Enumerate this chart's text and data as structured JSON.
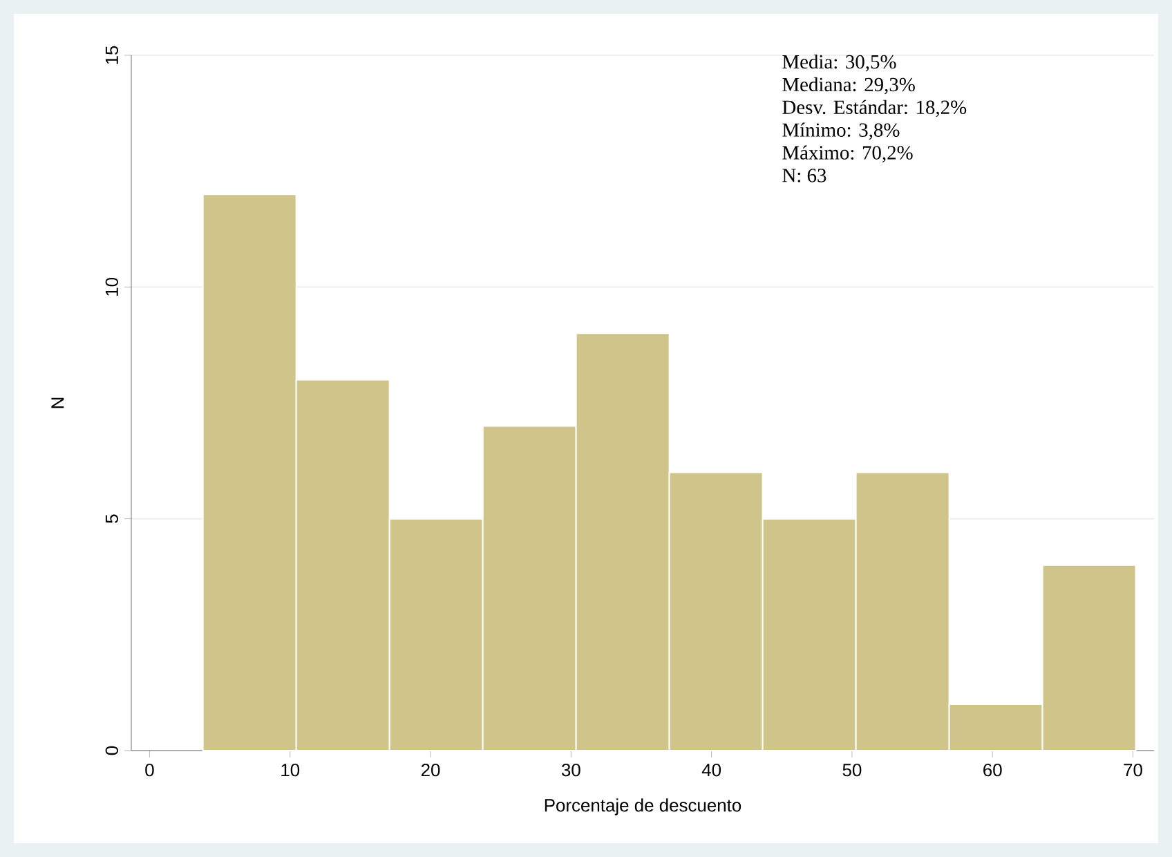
{
  "chart_data": {
    "type": "histogram",
    "xlabel": "Porcentaje de descuento",
    "ylabel": "N",
    "bins": [
      3.8,
      10.44,
      17.08,
      23.72,
      30.36,
      37.0,
      43.64,
      50.28,
      56.92,
      63.56,
      70.2
    ],
    "values": [
      12,
      8,
      5,
      7,
      9,
      6,
      5,
      6,
      1,
      4
    ],
    "color": "#cfc58b",
    "xlim": [
      -1.3,
      71.5
    ],
    "ylim": [
      0,
      15
    ],
    "xticks": [
      0,
      10,
      20,
      30,
      40,
      50,
      60,
      70
    ],
    "yticks": [
      0,
      5,
      10,
      15
    ],
    "grid": "y",
    "annotations": [
      "Media: 30,5%",
      "Mediana: 29,3%",
      "Desv. Estándar: 18,2%",
      "Mínimo: 3,8%",
      "Máximo: 70,2%",
      "N: 63"
    ]
  }
}
